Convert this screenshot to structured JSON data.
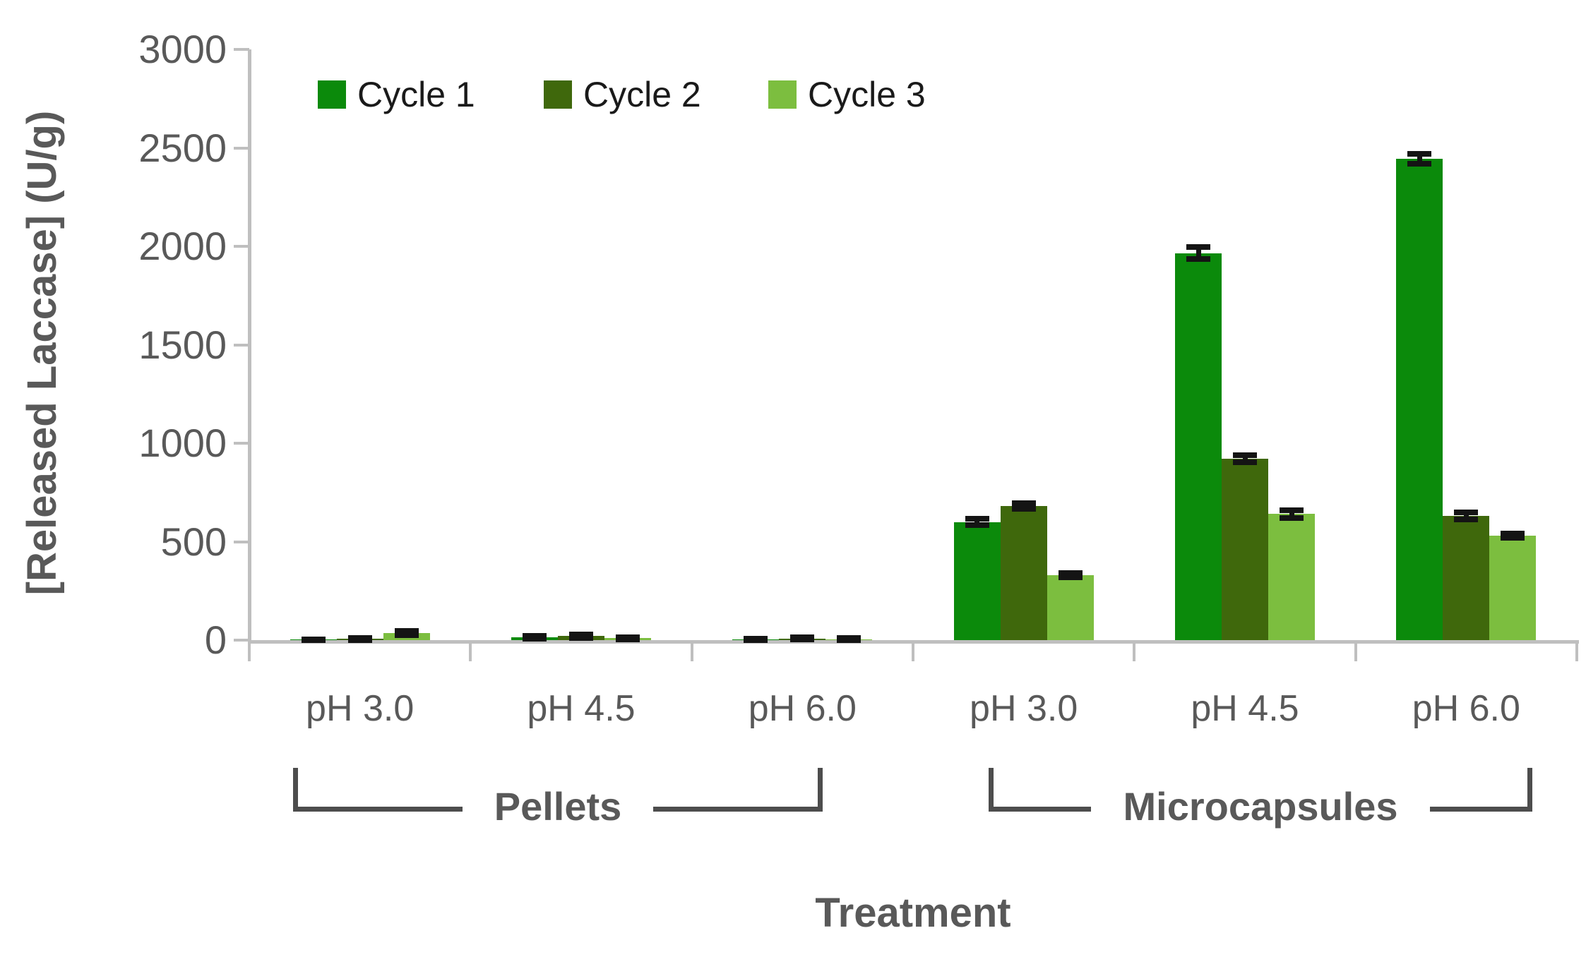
{
  "chart_data": {
    "type": "bar",
    "title": "",
    "ylabel": "[Released Laccase] (U/g)",
    "xlabel": "Treatment",
    "ylim": [
      0,
      3000
    ],
    "yticks": [
      0,
      500,
      1000,
      1500,
      2000,
      2500,
      3000
    ],
    "grid": false,
    "legend_position": "top",
    "axis_color": "#bfbfbf",
    "text_color": "#595959",
    "error_bar_color": "#141414",
    "series": [
      {
        "name": "Cycle 1",
        "color": "#0B8A0B"
      },
      {
        "name": "Cycle 2",
        "color": "#3F680C"
      },
      {
        "name": "Cycle 3",
        "color": "#7CBE3F"
      }
    ],
    "sections": [
      {
        "label": "Pellets"
      },
      {
        "label": "Microcapsules"
      }
    ],
    "groups": [
      {
        "section": "Pellets",
        "label": "pH 3.0",
        "values": [
          2,
          6,
          35
        ],
        "errors": [
          2,
          5,
          10
        ]
      },
      {
        "section": "Pellets",
        "label": "pH 4.5",
        "values": [
          14,
          20,
          10
        ],
        "errors": [
          8,
          10,
          5
        ]
      },
      {
        "section": "Pellets",
        "label": "pH 6.0",
        "values": [
          4,
          8,
          5
        ],
        "errors": [
          3,
          6,
          4
        ]
      },
      {
        "section": "Microcapsules",
        "label": "pH 3.0",
        "values": [
          600,
          680,
          330
        ],
        "errors": [
          15,
          15,
          12
        ]
      },
      {
        "section": "Microcapsules",
        "label": "pH 4.5",
        "values": [
          1965,
          920,
          640
        ],
        "errors": [
          30,
          18,
          20
        ]
      },
      {
        "section": "Microcapsules",
        "label": "pH 6.0",
        "values": [
          2445,
          630,
          530
        ],
        "errors": [
          25,
          18,
          12
        ]
      }
    ]
  }
}
